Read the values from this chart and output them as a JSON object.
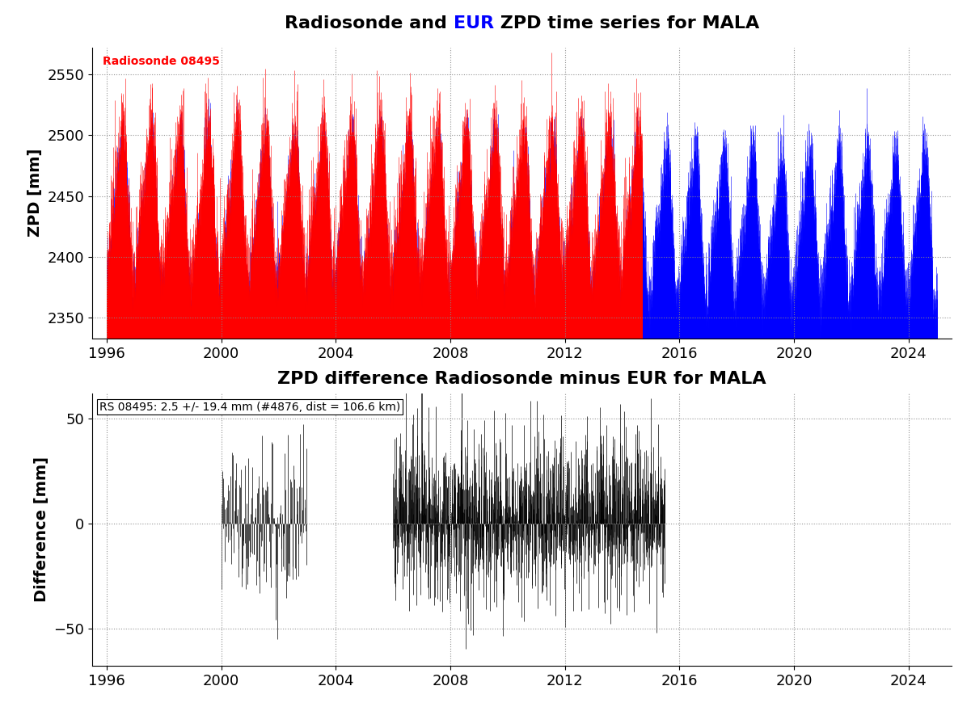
{
  "title1_parts": [
    "Radiosonde and ",
    "EUR",
    " ZPD time series for MALA"
  ],
  "title1_colors": [
    "black",
    "blue",
    "black"
  ],
  "title2": "ZPD difference Radiosonde minus EUR for MALA",
  "ylabel1": "ZPD [mm]",
  "ylabel2": "Difference [mm]",
  "ylim1": [
    2333,
    2572
  ],
  "ylim2": [
    -68,
    62
  ],
  "yticks1": [
    2350,
    2400,
    2450,
    2500,
    2550
  ],
  "yticks2": [
    -50,
    0,
    50
  ],
  "xlim": [
    1995.5,
    2025.5
  ],
  "xticks": [
    1996,
    2000,
    2004,
    2008,
    2012,
    2016,
    2020,
    2024
  ],
  "rs_label": "Radiosonde 08495",
  "rs_label_color": "red",
  "stats_label": "RS 08495: 2.5 +/- 19.4 mm (#4876, dist = 106.6 km)",
  "red_color": "#ff0000",
  "blue_color": "#0000ff",
  "black_color": "#000000",
  "background_color": "#ffffff",
  "grid_color": "#888888",
  "title_fontsize": 16,
  "label_fontsize": 14,
  "tick_fontsize": 13,
  "annotation_fontsize": 10,
  "seed": 42
}
